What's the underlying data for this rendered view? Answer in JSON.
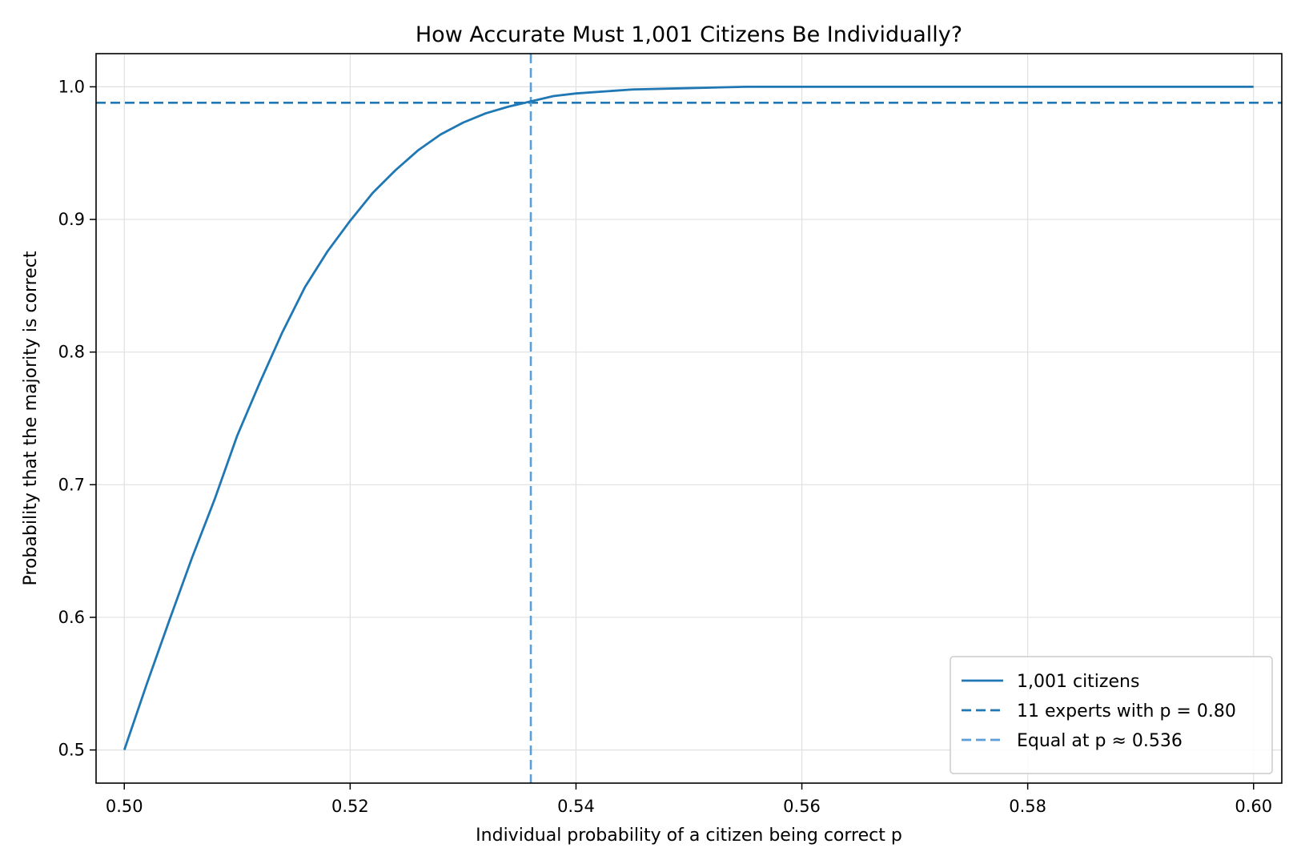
{
  "chart_data": {
    "type": "line",
    "title": "How Accurate Must 1,001 Citizens Be Individually?",
    "xlabel": "Individual probability of a citizen being correct p",
    "ylabel": "Probability that the majority is correct",
    "xlim": [
      0.4975,
      0.6025
    ],
    "ylim": [
      0.475,
      1.025
    ],
    "x_ticks": [
      0.5,
      0.52,
      0.54,
      0.56,
      0.58,
      0.6
    ],
    "x_tick_labels": [
      "0.50",
      "0.52",
      "0.54",
      "0.56",
      "0.58",
      "0.60"
    ],
    "y_ticks": [
      0.5,
      0.6,
      0.7,
      0.8,
      0.9,
      1.0
    ],
    "y_tick_labels": [
      "0.5",
      "0.6",
      "0.7",
      "0.8",
      "0.9",
      "1.0"
    ],
    "grid": true,
    "legend_position": "lower right",
    "series": [
      {
        "name": "1,001 citizens",
        "style": "solid",
        "color": "#1f77b4",
        "x": [
          0.5,
          0.502,
          0.504,
          0.506,
          0.508,
          0.51,
          0.512,
          0.514,
          0.516,
          0.518,
          0.52,
          0.522,
          0.524,
          0.526,
          0.528,
          0.53,
          0.532,
          0.534,
          0.536,
          0.538,
          0.54,
          0.545,
          0.55,
          0.555,
          0.56,
          0.57,
          0.58,
          0.59,
          0.6
        ],
        "y": [
          0.5,
          0.55,
          0.598,
          0.645,
          0.689,
          0.737,
          0.777,
          0.815,
          0.849,
          0.876,
          0.899,
          0.92,
          0.937,
          0.952,
          0.964,
          0.973,
          0.98,
          0.985,
          0.989,
          0.993,
          0.995,
          0.998,
          0.999,
          1.0,
          1.0,
          1.0,
          1.0,
          1.0,
          1.0
        ]
      },
      {
        "name": "11 experts with p = 0.80",
        "style": "dashed",
        "color": "#1f77b4",
        "orientation": "horizontal",
        "y": 0.988
      },
      {
        "name": "Equal at p ≈ 0.536",
        "style": "dashed",
        "color": "#5b9fd8",
        "orientation": "vertical",
        "x": 0.536
      }
    ]
  }
}
